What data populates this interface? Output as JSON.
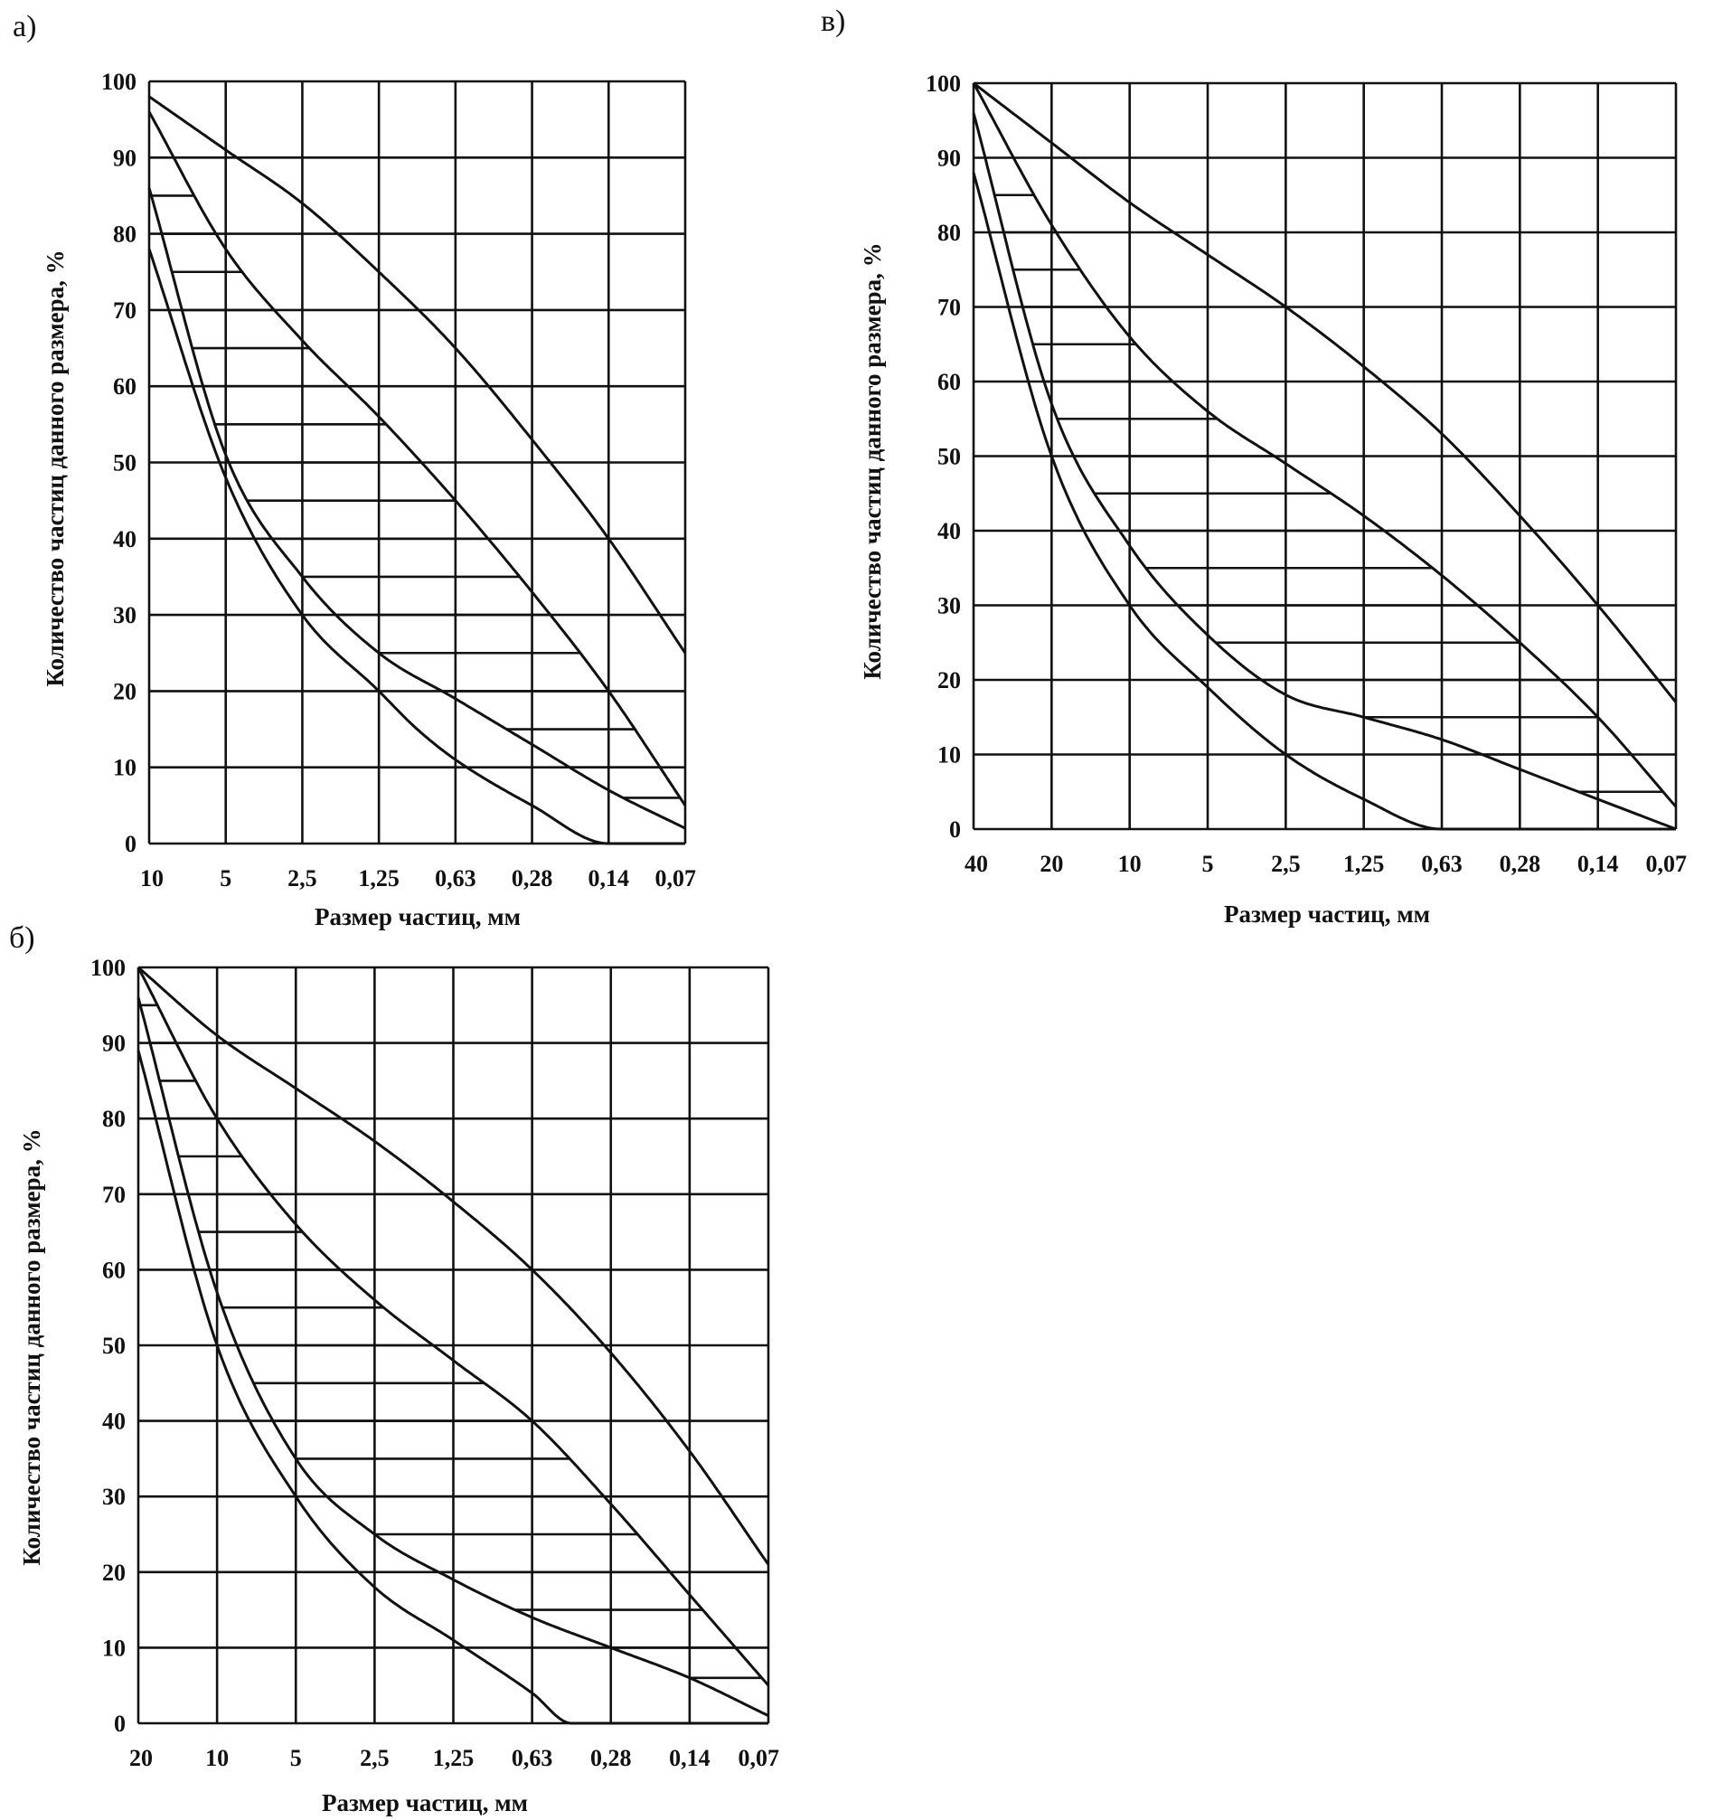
{
  "chart_data": [
    {
      "type": "line",
      "panel_label": "а)",
      "xlabel": "Размер частиц, мм",
      "ylabel": "Количество частиц данного размера, %",
      "categories": [
        "10",
        "5",
        "2,5",
        "1,25",
        "0,63",
        "0,28",
        "0,14",
        "0,07"
      ],
      "yticks": [
        "100",
        "90",
        "80",
        "70",
        "60",
        "50",
        "40",
        "30",
        "20",
        "10",
        "0"
      ],
      "ylim": [
        0,
        100
      ],
      "grid": true,
      "series": [
        {
          "name": "curve-1",
          "x": [
            0,
            1,
            2,
            3,
            4,
            5,
            6,
            7
          ],
          "y": [
            98,
            91,
            84,
            75,
            65,
            53,
            40,
            25
          ]
        },
        {
          "name": "curve-2",
          "x": [
            0,
            1,
            2,
            3,
            4,
            5,
            6,
            7
          ],
          "y": [
            96,
            78,
            66,
            56,
            45,
            33,
            20,
            5
          ]
        },
        {
          "name": "curve-3",
          "x": [
            0,
            1,
            2,
            3,
            4,
            5,
            6,
            7
          ],
          "y": [
            86,
            51,
            35,
            25,
            19,
            13,
            7,
            2
          ]
        },
        {
          "name": "curve-4",
          "x": [
            0,
            1,
            2,
            3,
            3.5,
            4,
            5,
            6,
            7
          ],
          "y": [
            78,
            48,
            30,
            20,
            15,
            11,
            5,
            0,
            0
          ]
        }
      ],
      "hatch_levels": [
        85,
        80,
        75,
        70,
        65,
        60,
        55,
        50,
        45,
        40,
        35,
        30,
        25,
        20,
        15,
        10,
        6
      ]
    },
    {
      "type": "line",
      "panel_label": "б)",
      "xlabel": "Размер частиц, мм",
      "ylabel": "Количество частиц данного размера, %",
      "categories": [
        "20",
        "10",
        "5",
        "2,5",
        "1,25",
        "0,63",
        "0,28",
        "0,14",
        "0,07"
      ],
      "yticks": [
        "100",
        "90",
        "80",
        "70",
        "60",
        "50",
        "40",
        "30",
        "20",
        "10",
        "0"
      ],
      "ylim": [
        0,
        100
      ],
      "grid": true,
      "series": [
        {
          "name": "curve-1",
          "x": [
            0,
            1,
            2,
            3,
            4,
            5,
            6,
            7,
            8
          ],
          "y": [
            100,
            91,
            84,
            77,
            69,
            60,
            49,
            36,
            21
          ]
        },
        {
          "name": "curve-2",
          "x": [
            0,
            1,
            2,
            3,
            4,
            5,
            6,
            7,
            8
          ],
          "y": [
            100,
            80,
            66,
            56,
            48,
            40,
            29,
            17,
            5
          ]
        },
        {
          "name": "curve-3",
          "x": [
            0,
            1,
            2,
            3,
            4,
            5,
            6,
            7,
            8
          ],
          "y": [
            96,
            57,
            35,
            25,
            19,
            14,
            10,
            6,
            1
          ]
        },
        {
          "name": "curve-4",
          "x": [
            0,
            1,
            2,
            3,
            4,
            5,
            5.5,
            6,
            7,
            8
          ],
          "y": [
            89,
            50,
            30,
            18,
            11,
            4,
            0,
            0,
            0,
            0
          ]
        }
      ],
      "hatch_levels": [
        95,
        90,
        85,
        80,
        75,
        70,
        65,
        60,
        55,
        50,
        45,
        40,
        35,
        30,
        25,
        20,
        15,
        10,
        6
      ]
    },
    {
      "type": "line",
      "panel_label": "в)",
      "xlabel": "Размер частиц, мм",
      "ylabel": "Количество частиц данного размера, %",
      "categories": [
        "40",
        "20",
        "10",
        "5",
        "2,5",
        "1,25",
        "0,63",
        "0,28",
        "0,14",
        "0,07"
      ],
      "yticks": [
        "100",
        "90",
        "80",
        "70",
        "60",
        "50",
        "40",
        "30",
        "20",
        "10",
        "0"
      ],
      "ylim": [
        0,
        100
      ],
      "grid": true,
      "series": [
        {
          "name": "curve-1",
          "x": [
            0,
            1,
            2,
            3,
            4,
            5,
            6,
            7,
            8,
            9
          ],
          "y": [
            100,
            92,
            84,
            77,
            70,
            62,
            53,
            42,
            30,
            17
          ]
        },
        {
          "name": "curve-2",
          "x": [
            0,
            1,
            2,
            3,
            4,
            5,
            6,
            7,
            8,
            9
          ],
          "y": [
            100,
            81,
            66,
            56,
            49,
            42,
            34,
            25,
            15,
            3
          ]
        },
        {
          "name": "curve-3",
          "x": [
            0,
            1,
            2,
            3,
            4,
            5,
            6,
            7,
            8,
            9
          ],
          "y": [
            96,
            57,
            38,
            26,
            18,
            15,
            12,
            8,
            4,
            0
          ]
        },
        {
          "name": "curve-4",
          "x": [
            0,
            1,
            2,
            3,
            4,
            5,
            6,
            7,
            8,
            9
          ],
          "y": [
            88,
            50,
            30,
            19,
            10,
            4,
            0,
            0,
            0,
            0
          ]
        }
      ],
      "hatch_levels": [
        85,
        80,
        75,
        70,
        65,
        60,
        55,
        50,
        45,
        40,
        35,
        30,
        25,
        20,
        15,
        10,
        5
      ]
    }
  ]
}
